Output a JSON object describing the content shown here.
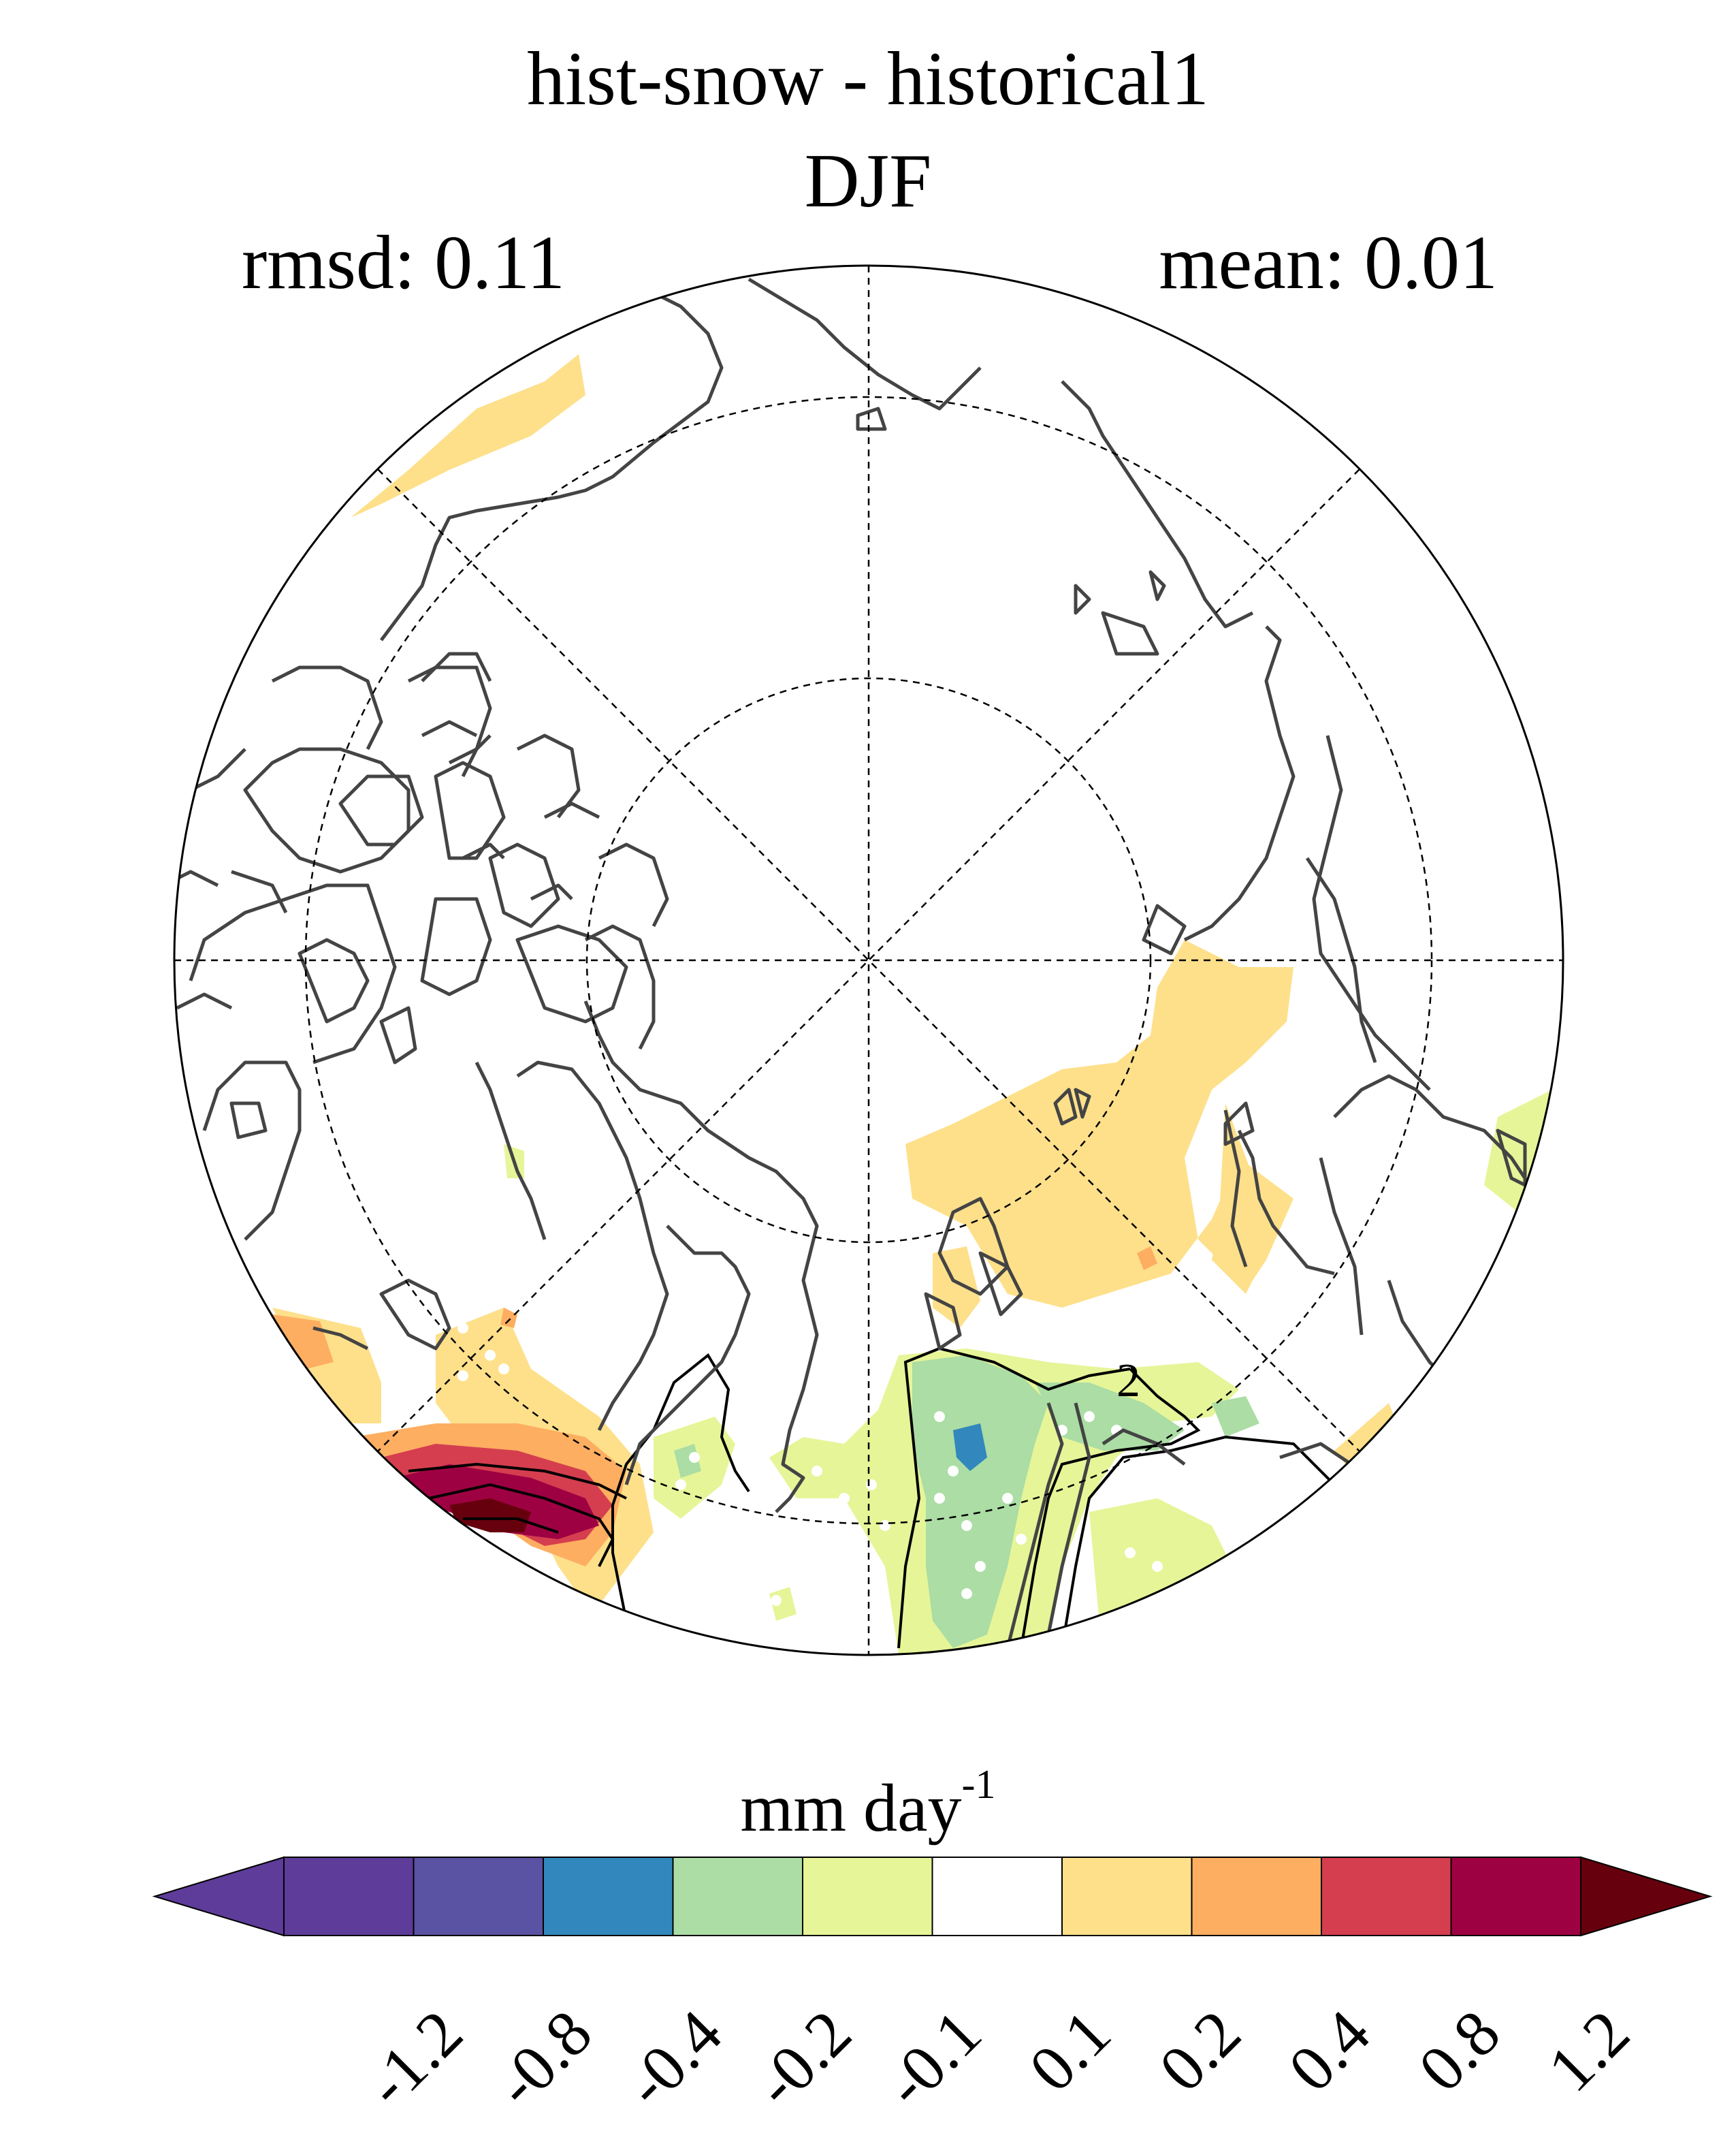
{
  "header": {
    "title": "hist-snow - historical1",
    "season": "DJF",
    "rmsd_label": "rmsd: 0.11",
    "mean_label": "mean: 0.01"
  },
  "colorbar": {
    "unit": "mm day",
    "unit_exponent": "-1",
    "ticks": [
      "-1.2",
      "-0.8",
      "-0.4",
      "-0.2",
      "-0.1",
      "0.1",
      "0.2",
      "0.4",
      "0.8",
      "1.2"
    ],
    "colors": [
      "#5e3c99",
      "#5a52a3",
      "#3288bd",
      "#abdda4",
      "#e6f598",
      "#ffffff",
      "#fee08b",
      "#fdae61",
      "#d53e4f",
      "#9e0142"
    ],
    "under_color": "#5e3c99",
    "over_color": "#67000d"
  },
  "map": {
    "projection": "north polar stereographic",
    "contour_label": "2",
    "colors": {
      "coast": "#444444",
      "contour": "#000000"
    }
  }
}
